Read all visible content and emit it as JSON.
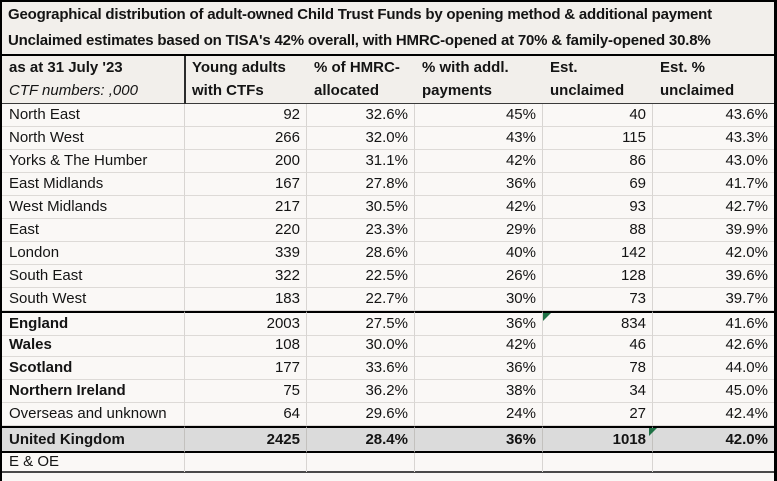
{
  "titles": {
    "line1": "Geographical distribution of adult-owned Child Trust Funds by opening method & additional payment",
    "line2": "Unclaimed estimates based on TISA's 42% overall, with HMRC-opened at 70% & family-opened 30.8%"
  },
  "header": {
    "corner_line1": "as at 31 July '23",
    "corner_line2": "CTF numbers: ,000",
    "columns": [
      {
        "line1": "Young adults",
        "line2": "with CTFs"
      },
      {
        "line1": "% of HMRC-",
        "line2": "allocated"
      },
      {
        "line1": "% with addl.",
        "line2": "payments"
      },
      {
        "line1": "Est.",
        "line2": "unclaimed"
      },
      {
        "line1": "Est. %",
        "line2": "unclaimed"
      }
    ]
  },
  "table": {
    "rows": [
      {
        "region": "North East",
        "ctfs": "92",
        "hmrc_pct": "32.6%",
        "addl_pct": "45%",
        "unclaimed": "40",
        "unclaimed_pct": "43.6%",
        "bold_region": false,
        "total": false,
        "sep_top": false,
        "marker": null
      },
      {
        "region": "North West",
        "ctfs": "266",
        "hmrc_pct": "32.0%",
        "addl_pct": "43%",
        "unclaimed": "115",
        "unclaimed_pct": "43.3%",
        "bold_region": false,
        "total": false,
        "sep_top": false,
        "marker": null
      },
      {
        "region": "Yorks & The Humber",
        "ctfs": "200",
        "hmrc_pct": "31.1%",
        "addl_pct": "42%",
        "unclaimed": "86",
        "unclaimed_pct": "43.0%",
        "bold_region": false,
        "total": false,
        "sep_top": false,
        "marker": null
      },
      {
        "region": "East Midlands",
        "ctfs": "167",
        "hmrc_pct": "27.8%",
        "addl_pct": "36%",
        "unclaimed": "69",
        "unclaimed_pct": "41.7%",
        "bold_region": false,
        "total": false,
        "sep_top": false,
        "marker": null
      },
      {
        "region": "West Midlands",
        "ctfs": "217",
        "hmrc_pct": "30.5%",
        "addl_pct": "42%",
        "unclaimed": "93",
        "unclaimed_pct": "42.7%",
        "bold_region": false,
        "total": false,
        "sep_top": false,
        "marker": null
      },
      {
        "region": "East",
        "ctfs": "220",
        "hmrc_pct": "23.3%",
        "addl_pct": "29%",
        "unclaimed": "88",
        "unclaimed_pct": "39.9%",
        "bold_region": false,
        "total": false,
        "sep_top": false,
        "marker": null
      },
      {
        "region": "London",
        "ctfs": "339",
        "hmrc_pct": "28.6%",
        "addl_pct": "40%",
        "unclaimed": "142",
        "unclaimed_pct": "42.0%",
        "bold_region": false,
        "total": false,
        "sep_top": false,
        "marker": null
      },
      {
        "region": "South East",
        "ctfs": "322",
        "hmrc_pct": "22.5%",
        "addl_pct": "26%",
        "unclaimed": "128",
        "unclaimed_pct": "39.6%",
        "bold_region": false,
        "total": false,
        "sep_top": false,
        "marker": null
      },
      {
        "region": "South West",
        "ctfs": "183",
        "hmrc_pct": "22.7%",
        "addl_pct": "30%",
        "unclaimed": "73",
        "unclaimed_pct": "39.7%",
        "bold_region": false,
        "total": false,
        "sep_top": false,
        "marker": null
      },
      {
        "region": "England",
        "ctfs": "2003",
        "hmrc_pct": "27.5%",
        "addl_pct": "36%",
        "unclaimed": "834",
        "unclaimed_pct": "41.6%",
        "bold_region": true,
        "total": false,
        "sep_top": true,
        "marker": "unclaimed"
      },
      {
        "region": "Wales",
        "ctfs": "108",
        "hmrc_pct": "30.0%",
        "addl_pct": "42%",
        "unclaimed": "46",
        "unclaimed_pct": "42.6%",
        "bold_region": true,
        "total": false,
        "sep_top": false,
        "marker": null
      },
      {
        "region": "Scotland",
        "ctfs": "177",
        "hmrc_pct": "33.6%",
        "addl_pct": "36%",
        "unclaimed": "78",
        "unclaimed_pct": "44.0%",
        "bold_region": true,
        "total": false,
        "sep_top": false,
        "marker": null
      },
      {
        "region": "Northern Ireland",
        "ctfs": "75",
        "hmrc_pct": "36.2%",
        "addl_pct": "38%",
        "unclaimed": "34",
        "unclaimed_pct": "45.0%",
        "bold_region": true,
        "total": false,
        "sep_top": false,
        "marker": null
      },
      {
        "region": "Overseas and unknown",
        "ctfs": "64",
        "hmrc_pct": "29.6%",
        "addl_pct": "24%",
        "unclaimed": "27",
        "unclaimed_pct": "42.4%",
        "bold_region": false,
        "total": false,
        "sep_top": false,
        "marker": null
      },
      {
        "region": "United Kingdom",
        "ctfs": "2425",
        "hmrc_pct": "28.4%",
        "addl_pct": "36%",
        "unclaimed": "1018",
        "unclaimed_pct": "42.0%",
        "bold_region": true,
        "total": true,
        "sep_top": true,
        "marker": "unclaimed_pct"
      }
    ]
  },
  "footer": {
    "note": "E & OE"
  },
  "colors": {
    "band_bg": "#F2EFEB",
    "sheet_bg": "#FAF8F6",
    "total_row_bg": "#DBDBDB",
    "gridline": "#D8D5D2",
    "border": "#000000",
    "error_triangle_green": "#1E7145"
  }
}
